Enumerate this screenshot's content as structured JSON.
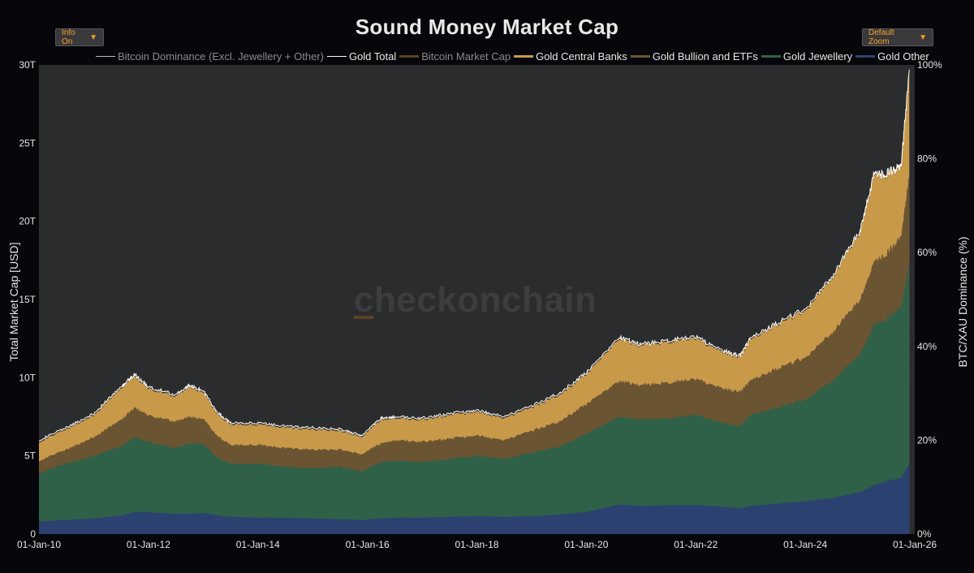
{
  "controls": {
    "info_label": "Info On",
    "info_caret": "▼",
    "zoom_label": "Default Zoom",
    "zoom_caret": "▼"
  },
  "watermark": "checkonchain",
  "colors": {
    "background": "#07070b",
    "plot_bg": "#2b2c2e",
    "gold_central_banks": "#c9994a",
    "gold_bullion_etfs": "#6b5432",
    "gold_jewellery": "#2f6148",
    "gold_other": "#2b4270",
    "gold_total": "#ffffff",
    "bitcoin_market_cap": "#5a4322",
    "btc_dominance": "#bcbcbc",
    "accent": "#f0a024"
  },
  "chart_data": {
    "type": "area",
    "title": "Sound Money Market Cap",
    "ylabel": "Total Market Cap [USD]",
    "y2label": "BTC/XAU Dominance (%)",
    "xlabel": "",
    "xlim": [
      2010.0,
      2026.0
    ],
    "ylim": [
      0,
      30
    ],
    "y2lim": [
      0,
      100
    ],
    "x_ticks": [
      {
        "x": 2010,
        "label": "01-Jan-10"
      },
      {
        "x": 2012,
        "label": "01-Jan-12"
      },
      {
        "x": 2014,
        "label": "01-Jan-14"
      },
      {
        "x": 2016,
        "label": "01-Jan-16"
      },
      {
        "x": 2018,
        "label": "01-Jan-18"
      },
      {
        "x": 2020,
        "label": "01-Jan-20"
      },
      {
        "x": 2022,
        "label": "01-Jan-22"
      },
      {
        "x": 2024,
        "label": "01-Jan-24"
      },
      {
        "x": 2026,
        "label": "01-Jan-26"
      }
    ],
    "y_ticks": [
      {
        "y": 0,
        "label": "0"
      },
      {
        "y": 5,
        "label": "5T"
      },
      {
        "y": 10,
        "label": "10T"
      },
      {
        "y": 15,
        "label": "15T"
      },
      {
        "y": 20,
        "label": "20T"
      },
      {
        "y": 25,
        "label": "25T"
      },
      {
        "y": 30,
        "label": "30T"
      }
    ],
    "y2_ticks": [
      {
        "y": 0,
        "label": "0%"
      },
      {
        "y": 20,
        "label": "20%"
      },
      {
        "y": 40,
        "label": "40%"
      },
      {
        "y": 60,
        "label": "60%"
      },
      {
        "y": 80,
        "label": "80%"
      },
      {
        "y": 100,
        "label": "100%"
      }
    ],
    "legend": [
      {
        "label": "Bitcoin Dominance (Excl. Jewellery + Other)",
        "color": "#bcbcbc",
        "style": "line",
        "dim": true
      },
      {
        "label": "Gold Total",
        "color": "#ffffff",
        "style": "line",
        "dim": false
      },
      {
        "label": "Bitcoin Market Cap",
        "color": "#5a4322",
        "style": "bar",
        "dim": true
      },
      {
        "label": "Gold Central Banks",
        "color": "#c9994a",
        "style": "bar",
        "dim": false
      },
      {
        "label": "Gold Bullion and ETFs",
        "color": "#6b5432",
        "style": "bar",
        "dim": false
      },
      {
        "label": "Gold Jewellery",
        "color": "#2f6148",
        "style": "bar",
        "dim": false
      },
      {
        "label": "Gold Other",
        "color": "#2b4270",
        "style": "bar",
        "dim": false
      }
    ],
    "x": [
      2010.0,
      2010.5,
      2011.0,
      2011.5,
      2011.75,
      2012.0,
      2012.5,
      2012.75,
      2013.0,
      2013.25,
      2013.5,
      2014.0,
      2014.5,
      2015.0,
      2015.5,
      2015.9,
      2016.25,
      2016.5,
      2017.0,
      2017.5,
      2018.0,
      2018.5,
      2019.0,
      2019.5,
      2020.0,
      2020.6,
      2021.0,
      2021.5,
      2022.0,
      2022.5,
      2022.8,
      2023.0,
      2023.5,
      2024.0,
      2024.5,
      2025.0,
      2025.25,
      2025.5,
      2025.75,
      2025.9
    ],
    "series": [
      {
        "name": "Gold Other",
        "stack_level": "cumulative_top",
        "values": [
          0.8,
          0.9,
          1.0,
          1.2,
          1.4,
          1.4,
          1.3,
          1.3,
          1.35,
          1.2,
          1.1,
          1.05,
          1.05,
          1.0,
          0.95,
          0.9,
          1.0,
          1.05,
          1.05,
          1.1,
          1.15,
          1.1,
          1.15,
          1.25,
          1.4,
          1.9,
          1.8,
          1.85,
          1.85,
          1.75,
          1.65,
          1.8,
          1.95,
          2.1,
          2.3,
          2.7,
          3.1,
          3.4,
          3.6,
          4.5
        ]
      },
      {
        "name": "Gold Jewellery",
        "stack_level": "cumulative_top",
        "values": [
          3.9,
          4.5,
          5.0,
          5.6,
          6.2,
          5.9,
          5.5,
          5.8,
          5.8,
          4.9,
          4.5,
          4.5,
          4.3,
          4.2,
          4.3,
          4.0,
          4.6,
          4.7,
          4.6,
          4.8,
          5.0,
          4.8,
          5.2,
          5.6,
          6.4,
          7.5,
          7.3,
          7.4,
          7.6,
          7.1,
          6.9,
          7.6,
          8.1,
          8.6,
          9.8,
          11.5,
          13.3,
          13.8,
          14.5,
          17.2
        ]
      },
      {
        "name": "Gold Bullion and ETFs",
        "stack_level": "cumulative_top",
        "values": [
          4.7,
          5.4,
          6.2,
          7.3,
          8.1,
          7.6,
          7.2,
          7.5,
          7.4,
          6.3,
          5.7,
          5.7,
          5.5,
          5.4,
          5.4,
          5.1,
          5.8,
          6.0,
          5.9,
          6.1,
          6.3,
          6.0,
          6.6,
          7.2,
          8.3,
          9.8,
          9.5,
          9.7,
          9.9,
          9.3,
          9.1,
          9.8,
          10.6,
          11.3,
          12.9,
          15.0,
          17.3,
          18.0,
          19.0,
          23.0
        ]
      },
      {
        "name": "Gold Central Banks",
        "stack_level": "cumulative_top",
        "values": [
          5.9,
          6.7,
          7.6,
          9.3,
          10.1,
          9.3,
          8.8,
          9.4,
          9.1,
          7.7,
          7.0,
          7.0,
          6.8,
          6.7,
          6.6,
          6.2,
          7.3,
          7.4,
          7.3,
          7.6,
          7.8,
          7.4,
          8.1,
          8.9,
          10.2,
          12.5,
          12.0,
          12.3,
          12.5,
          11.6,
          11.3,
          12.4,
          13.4,
          14.3,
          16.4,
          19.3,
          22.8,
          23.0,
          23.4,
          29.5
        ]
      },
      {
        "name": "Gold Total",
        "values": [
          6.0,
          6.8,
          7.7,
          9.4,
          10.2,
          9.4,
          8.9,
          9.5,
          9.2,
          7.8,
          7.1,
          7.1,
          6.9,
          6.8,
          6.7,
          6.3,
          7.4,
          7.5,
          7.4,
          7.7,
          7.9,
          7.5,
          8.2,
          9.0,
          10.3,
          12.6,
          12.1,
          12.4,
          12.6,
          11.7,
          11.4,
          12.5,
          13.5,
          14.4,
          16.5,
          19.4,
          22.9,
          23.1,
          23.5,
          29.7
        ]
      }
    ]
  }
}
